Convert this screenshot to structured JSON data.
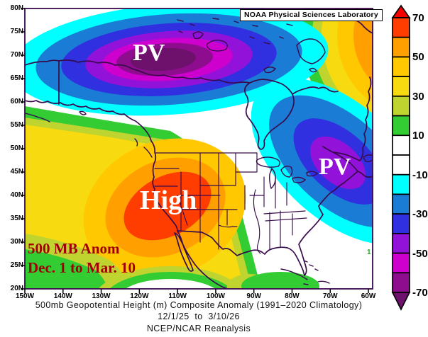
{
  "palette": {
    "gt70": "#F60000",
    "p60_70": "#FF3D00",
    "p50_60": "#FFA000",
    "p40_50": "#FFC800",
    "p30_40": "#F7DB10",
    "p20_30": "#BFD42E",
    "p10_20": "#33CC33",
    "zero": "#FFFFFF",
    "m10_20": "#00FFFF",
    "m20_30": "#1B7CD6",
    "m30_40": "#3030E0",
    "m40_50": "#9312D9",
    "m50_60": "#CE00CE",
    "m60_70": "#8E0D8E",
    "lt70": "#6D116D",
    "coastline": "#370B4B",
    "annotation_red": "#A00000"
  },
  "header": {
    "lab_label": "NOAA Physical Sciences Laboratory"
  },
  "annotations": {
    "pv_west": "PV",
    "pv_east": "PV",
    "high": "High",
    "level": "500 MB Anom",
    "period": "Dec. 1 to Mar. 10",
    "stray_contour_label": "1"
  },
  "captions": {
    "line1": "500mb Geopotential Height (m) Composite Anomaly (1991–2020 Climatology)",
    "line2": "12/1/25  to  3/10/26",
    "line3": "NCEP/NCAR Reanalysis"
  },
  "axes": {
    "lat_labels": [
      "80N",
      "75N",
      "70N",
      "65N",
      "60N",
      "55N",
      "50N",
      "45N",
      "40N",
      "35N",
      "30N",
      "25N",
      "20N"
    ],
    "lon_labels": [
      "150W",
      "140W",
      "130W",
      "120W",
      "110W",
      "100W",
      "90W",
      "80W",
      "70W",
      "60W"
    ]
  },
  "colorbar": {
    "tick_labels": [
      "70",
      "50",
      "30",
      "10",
      "-10",
      "-30",
      "-50",
      "-70"
    ],
    "segments": [
      {
        "range": "60 to 70",
        "color": "#FF3D00"
      },
      {
        "range": "50 to 60",
        "color": "#FFA000"
      },
      {
        "range": "40 to 50",
        "color": "#FFC800"
      },
      {
        "range": "30 to 40",
        "color": "#F7DB10"
      },
      {
        "range": "20 to 30",
        "color": "#BFD42E"
      },
      {
        "range": "10 to 20",
        "color": "#33CC33"
      },
      {
        "range": "0 to 10",
        "color": "#FFFFFF"
      },
      {
        "range": "-10 to 0",
        "color": "#FFFFFF"
      },
      {
        "range": "-20 to -10",
        "color": "#00FFFF"
      },
      {
        "range": "-30 to -20",
        "color": "#1B7CD6"
      },
      {
        "range": "-40 to -30",
        "color": "#3030E0"
      },
      {
        "range": "-50 to -40",
        "color": "#9312D9"
      },
      {
        "range": "-60 to -50",
        "color": "#CE00CE"
      },
      {
        "range": "-70 to -60",
        "color": "#8E0D8E"
      }
    ],
    "arrow_above_color": "#F60000",
    "arrow_below_color": "#6D116D"
  },
  "map_content": {
    "type": "filled-contour composite anomaly map, North America",
    "units": "m",
    "anomaly_centers": [
      {
        "label": "PV",
        "sign": "negative",
        "approx_location": "70N 110W (Canadian Arctic)",
        "peak": "< -70"
      },
      {
        "label": "PV",
        "sign": "negative",
        "approx_location": "47N 67W (eastern Canada / NW Atlantic)",
        "peak": "about -50"
      },
      {
        "label": "High",
        "sign": "positive",
        "approx_location": "38N 112W (US Southwest)",
        "peak": "about +70"
      },
      {
        "label": "",
        "sign": "positive",
        "approx_location": "northeast corner near Greenland",
        "peak": "> +60"
      }
    ]
  }
}
